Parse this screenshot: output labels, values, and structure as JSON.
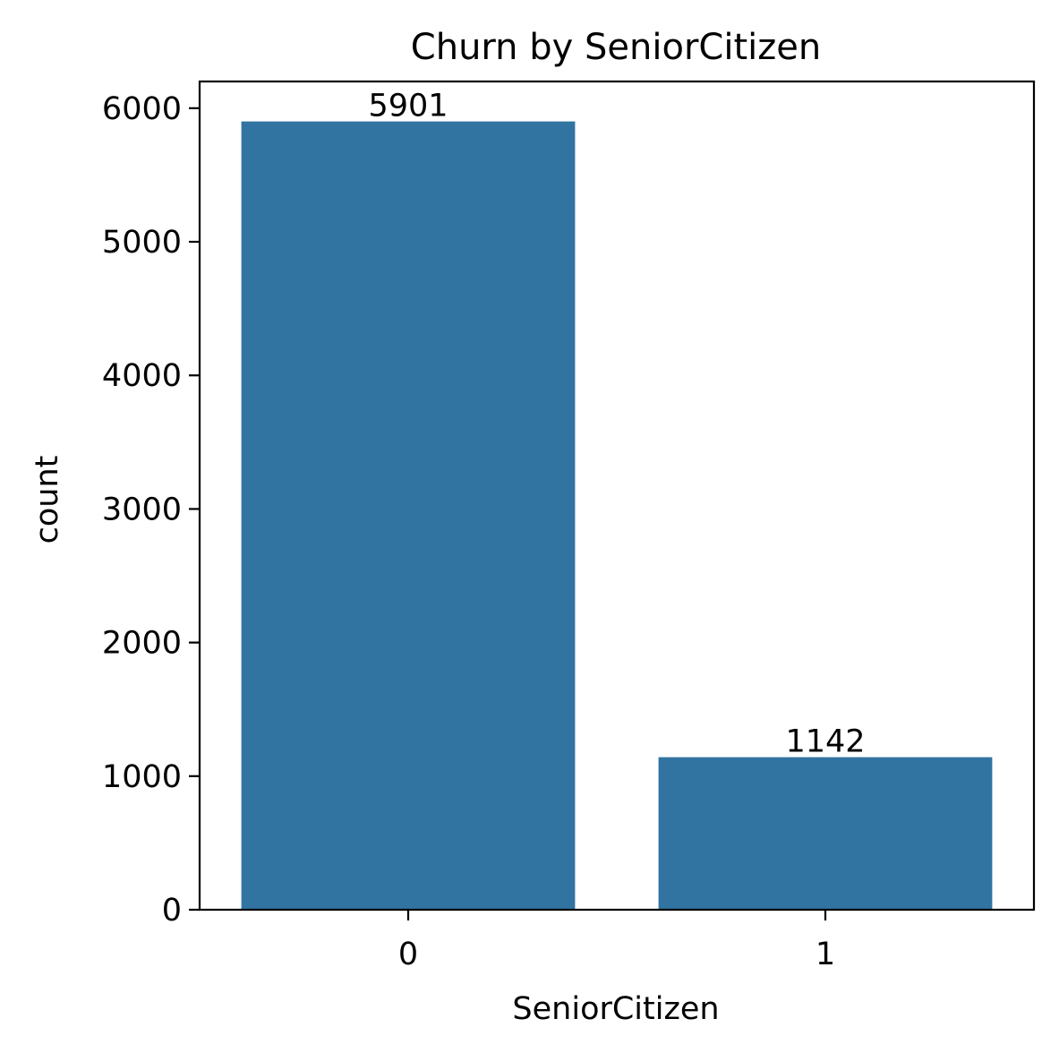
{
  "chart_data": {
    "type": "bar",
    "title": "Churn by SeniorCitizen",
    "xlabel": "SeniorCitizen",
    "ylabel": "count",
    "categories": [
      "0",
      "1"
    ],
    "values": [
      5901,
      1142
    ],
    "data_labels": [
      "5901",
      "1142"
    ],
    "ylim": [
      0,
      6200
    ],
    "yticks": [
      0,
      1000,
      2000,
      3000,
      4000,
      5000,
      6000
    ],
    "ytick_labels": [
      "0",
      "1000",
      "2000",
      "3000",
      "4000",
      "5000",
      "6000"
    ],
    "grid": false,
    "legend": "none",
    "bar_color": "#3274a1"
  }
}
